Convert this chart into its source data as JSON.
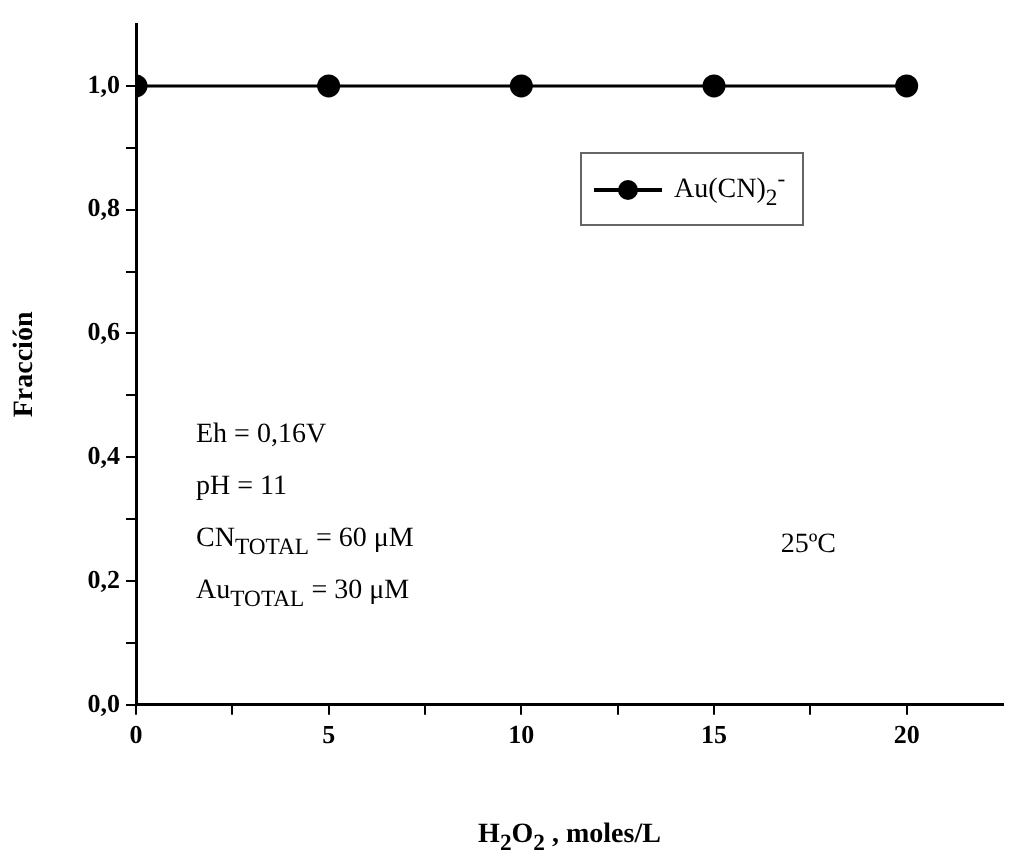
{
  "chart_data": {
    "type": "line",
    "xlabel": "H$_{2}$O$_{2}$ , moles/L",
    "ylabel": "Fracción",
    "x": [
      0,
      5,
      10,
      15,
      20
    ],
    "series": [
      {
        "name": "Au(CN)$_{2}$$^{-}$",
        "color": "#000000",
        "values": [
          1,
          1,
          1,
          1,
          1
        ]
      }
    ],
    "xlim": [
      0,
      22.5
    ],
    "xticks": [
      0,
      {
        "value": 2.5,
        "label": null
      },
      5,
      {
        "value": 7.5,
        "label": null
      },
      10,
      {
        "value": 12.5,
        "label": null
      },
      15,
      {
        "value": 17.5,
        "label": null
      },
      20
    ],
    "ylim": [
      0,
      1.1
    ],
    "yticks": [
      {
        "value": 0,
        "label": "0,0"
      },
      {
        "value": 0.1,
        "label": null
      },
      {
        "value": 0.2,
        "label": "0,2"
      },
      {
        "value": 0.3,
        "label": null
      },
      {
        "value": 0.4,
        "label": "0,4"
      },
      {
        "value": 0.5,
        "label": null
      },
      {
        "value": 0.6,
        "label": "0,6"
      },
      {
        "value": 0.7,
        "label": null
      },
      {
        "value": 0.8,
        "label": "0,8"
      },
      {
        "value": 0.9,
        "label": null
      },
      {
        "value": 1.0,
        "label": "1,0"
      }
    ],
    "marker": "circle",
    "line_style": "solid",
    "grid": false,
    "legend": "top right",
    "annotations": [
      "Eh = 0,16V",
      "pH = 11",
      "CN$_{TOTAL}$ = 60 μM",
      "Au$_{TOTAL}$ = 30 μM",
      "25ºC"
    ]
  }
}
